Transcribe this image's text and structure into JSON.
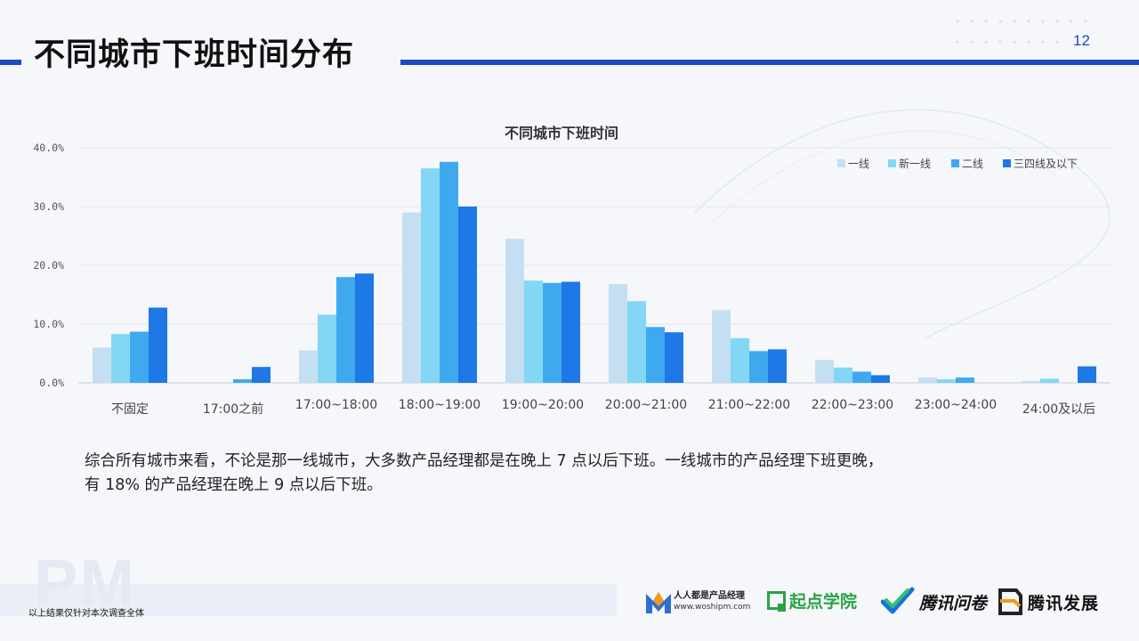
{
  "header": {
    "title": "不同城市下班时间分布",
    "page_number": "12"
  },
  "colors": {
    "accent": "#1a4bbf",
    "grid": "#e2e5ea",
    "series": [
      "#c5dff2",
      "#84d6f5",
      "#3fa9f0",
      "#1e78e6"
    ]
  },
  "chart_data": {
    "type": "bar",
    "title": "不同城市下班时间",
    "categories": [
      "不固定",
      "17:00之前",
      "17:00~18:00",
      "18:00~19:00",
      "19:00~20:00",
      "20:00~21:00",
      "21:00~22:00",
      "22:00~23:00",
      "23:00~24:00",
      "24:00及以后"
    ],
    "series": [
      {
        "name": "一线",
        "values": [
          6.0,
          0.0,
          5.5,
          29.0,
          24.5,
          16.8,
          12.4,
          3.9,
          0.9,
          0.3
        ]
      },
      {
        "name": "新一线",
        "values": [
          8.3,
          0.0,
          11.6,
          36.5,
          17.4,
          13.9,
          7.6,
          2.6,
          0.6,
          0.7
        ]
      },
      {
        "name": "二线",
        "values": [
          8.7,
          0.6,
          18.0,
          37.6,
          17.0,
          9.5,
          5.4,
          1.9,
          0.9,
          0.0
        ]
      },
      {
        "name": "三四线及以下",
        "values": [
          12.8,
          2.7,
          18.6,
          30.0,
          17.2,
          8.6,
          5.7,
          1.3,
          0.0,
          2.8
        ]
      }
    ],
    "y_ticks": [
      "0.0%",
      "10.0%",
      "20.0%",
      "30.0%",
      "40.0%"
    ],
    "ylim": [
      0,
      40
    ],
    "grid": true,
    "legend_position": "top-right"
  },
  "summary": {
    "line1": "综合所有城市来看，不论是那一线城市，大多数产品经理都是在晚上 7 点以后下班。一线城市的产品经理下班更晚，",
    "line2": "有 18% 的产品经理在晚上 9 点以后下班。"
  },
  "footer": {
    "watermark": "PM",
    "note": "以上结果仅针对本次调查全体",
    "logos": {
      "woshipm_cn": "人人都是产品经理",
      "woshipm_url": "www.woshipm.com",
      "qidian_cn": "起点学院",
      "wenjuan": "腾讯问卷",
      "fazhan": "腾讯发展"
    }
  }
}
